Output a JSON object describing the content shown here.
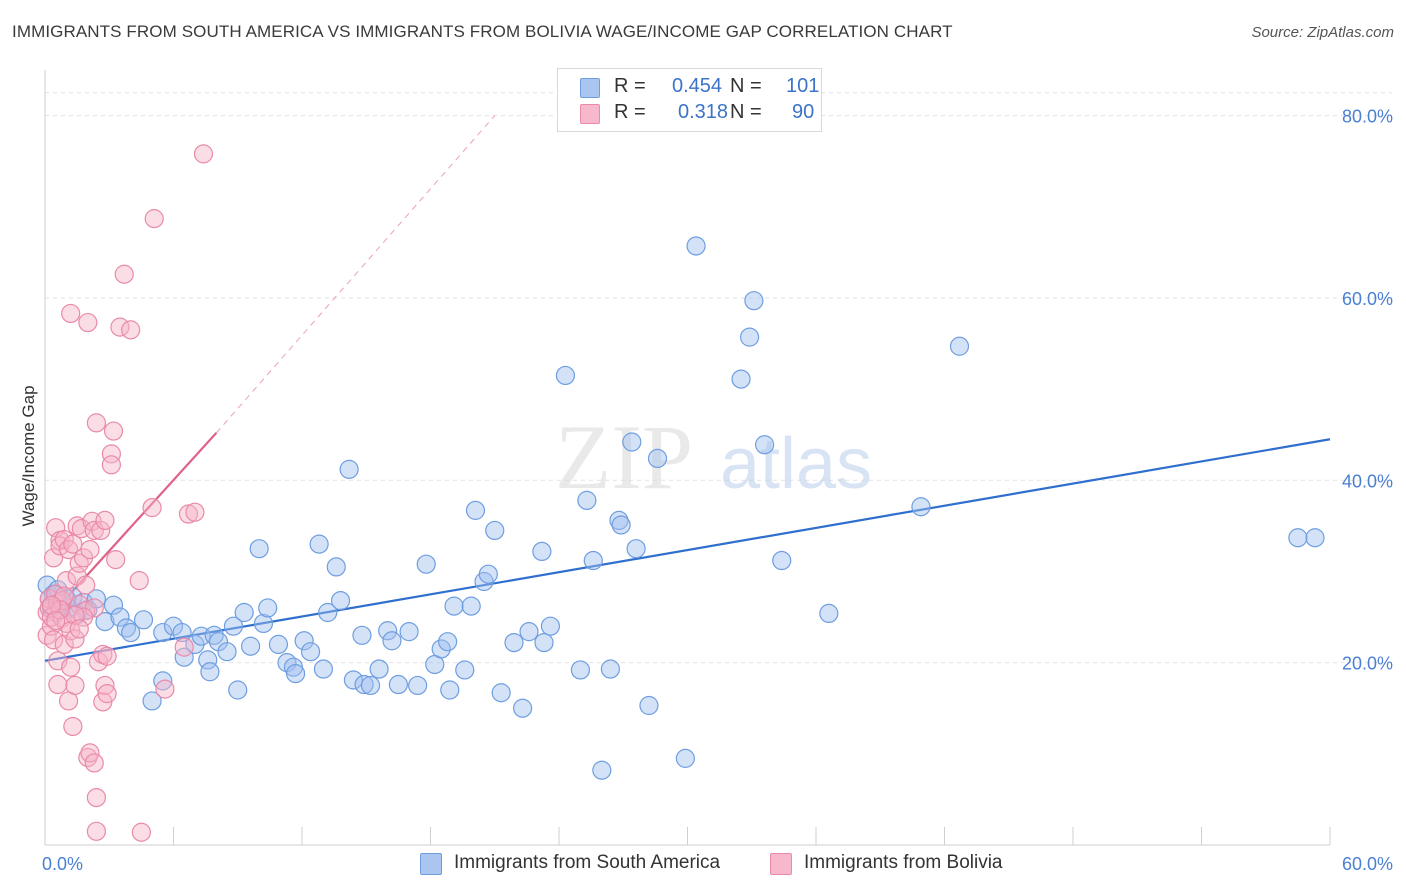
{
  "title": "IMMIGRANTS FROM SOUTH AMERICA VS IMMIGRANTS FROM BOLIVIA WAGE/INCOME GAP CORRELATION CHART",
  "source": "Source: ZipAtlas.com",
  "watermark": {
    "zip": "ZIP",
    "atlas": "atlas"
  },
  "legend_top": [
    {
      "r_label": "R =",
      "r_value": "0.454",
      "n_label": "N =",
      "n_value": "101",
      "color": "#aac6f0",
      "border": "#6e9ee0"
    },
    {
      "r_label": "R =",
      "r_value": "0.318",
      "n_label": "N =",
      "n_value": "90",
      "color": "#f7b8cb",
      "border": "#e98aa8"
    }
  ],
  "legend_bottom": [
    {
      "label": "Immigrants from South America",
      "color": "#aac6f0",
      "border": "#6e9ee0"
    },
    {
      "label": "Immigrants from Bolivia",
      "color": "#f7b8cb",
      "border": "#e98aa8"
    }
  ],
  "chart_data": {
    "type": "scatter",
    "xlabel": "",
    "ylabel": "Wage/Income Gap",
    "xlim": [
      0,
      60
    ],
    "ylim": [
      0,
      85
    ],
    "x_tick_labels": [
      "0.0%",
      "60.0%"
    ],
    "y_ticks": [
      20,
      40,
      60,
      80
    ],
    "y_tick_labels": [
      "20.0%",
      "40.0%",
      "60.0%",
      "80.0%"
    ],
    "grid": true,
    "series": [
      {
        "name": "Immigrants from South America",
        "color": "#6e9ee0",
        "fill": "rgba(160,190,240,0.45)",
        "trend": {
          "x": [
            0,
            60
          ],
          "y": [
            20.2,
            44.5
          ],
          "color": "#2f6fce",
          "dashed_extension": false
        },
        "points": [
          [
            0.1,
            28.5
          ],
          [
            0.2,
            27.0
          ],
          [
            0.3,
            26.0
          ],
          [
            0.4,
            27.5
          ],
          [
            0.5,
            25.5
          ],
          [
            0.6,
            28.0
          ],
          [
            0.8,
            26.5
          ],
          [
            1.0,
            27.0
          ],
          [
            1.1,
            26.0
          ],
          [
            1.3,
            27.2
          ],
          [
            1.5,
            25.3
          ],
          [
            1.8,
            26.6
          ],
          [
            2.0,
            25.8
          ],
          [
            2.4,
            27.0
          ],
          [
            2.8,
            24.5
          ],
          [
            3.2,
            26.3
          ],
          [
            3.5,
            25.0
          ],
          [
            3.8,
            23.8
          ],
          [
            4.0,
            23.3
          ],
          [
            4.6,
            24.7
          ],
          [
            5.0,
            15.8
          ],
          [
            5.5,
            23.3
          ],
          [
            5.5,
            18.0
          ],
          [
            6.0,
            24.0
          ],
          [
            6.4,
            23.3
          ],
          [
            6.5,
            20.6
          ],
          [
            7.0,
            22.0
          ],
          [
            7.3,
            22.9
          ],
          [
            7.6,
            20.3
          ],
          [
            7.7,
            19.0
          ],
          [
            7.9,
            23.0
          ],
          [
            8.1,
            22.3
          ],
          [
            8.5,
            21.2
          ],
          [
            8.8,
            24.0
          ],
          [
            9.0,
            17.0
          ],
          [
            9.3,
            25.5
          ],
          [
            9.6,
            21.8
          ],
          [
            10.0,
            32.5
          ],
          [
            10.2,
            24.3
          ],
          [
            10.4,
            26.0
          ],
          [
            10.9,
            22.0
          ],
          [
            11.3,
            20.0
          ],
          [
            11.6,
            19.5
          ],
          [
            11.7,
            18.8
          ],
          [
            12.1,
            22.4
          ],
          [
            12.4,
            21.2
          ],
          [
            12.8,
            33.0
          ],
          [
            13.0,
            19.3
          ],
          [
            13.2,
            25.5
          ],
          [
            13.6,
            30.5
          ],
          [
            13.8,
            26.8
          ],
          [
            14.2,
            41.2
          ],
          [
            14.4,
            18.1
          ],
          [
            14.8,
            23.0
          ],
          [
            14.9,
            17.6
          ],
          [
            15.2,
            17.5
          ],
          [
            15.6,
            19.3
          ],
          [
            16.0,
            23.5
          ],
          [
            16.2,
            22.4
          ],
          [
            16.5,
            17.6
          ],
          [
            17.0,
            23.4
          ],
          [
            17.4,
            17.5
          ],
          [
            17.8,
            30.8
          ],
          [
            18.2,
            19.8
          ],
          [
            18.5,
            21.5
          ],
          [
            18.8,
            22.3
          ],
          [
            18.9,
            17.0
          ],
          [
            19.1,
            26.2
          ],
          [
            19.6,
            19.2
          ],
          [
            19.9,
            26.2
          ],
          [
            20.1,
            36.7
          ],
          [
            20.5,
            28.9
          ],
          [
            20.7,
            29.7
          ],
          [
            21.0,
            34.5
          ],
          [
            21.3,
            16.7
          ],
          [
            21.9,
            22.2
          ],
          [
            22.3,
            15.0
          ],
          [
            22.6,
            23.4
          ],
          [
            23.3,
            22.2
          ],
          [
            23.2,
            32.2
          ],
          [
            23.6,
            24.0
          ],
          [
            24.3,
            51.5
          ],
          [
            25.0,
            19.2
          ],
          [
            25.3,
            37.8
          ],
          [
            25.6,
            31.2
          ],
          [
            26.0,
            8.2
          ],
          [
            26.4,
            19.3
          ],
          [
            26.8,
            35.6
          ],
          [
            26.9,
            35.1
          ],
          [
            27.4,
            44.2
          ],
          [
            27.6,
            32.5
          ],
          [
            28.2,
            15.3
          ],
          [
            28.6,
            42.4
          ],
          [
            29.9,
            9.5
          ],
          [
            30.4,
            65.7
          ],
          [
            32.5,
            51.1
          ],
          [
            32.9,
            55.7
          ],
          [
            33.1,
            59.7
          ],
          [
            33.6,
            43.9
          ],
          [
            34.4,
            31.2
          ],
          [
            36.6,
            25.4
          ],
          [
            40.9,
            37.1
          ],
          [
            42.7,
            54.7
          ],
          [
            59.3,
            33.7
          ],
          [
            58.5,
            33.7
          ]
        ]
      },
      {
        "name": "Immigrants from Bolivia",
        "color": "#e98aa8",
        "fill": "rgba(247,180,200,0.45)",
        "trend": {
          "x": [
            0,
            8.0
          ],
          "y": [
            24.5,
            45.2
          ],
          "color": "#e0628a",
          "dashed_extension_to": [
            21.0,
            80.0
          ]
        },
        "points": [
          [
            0.1,
            25.5
          ],
          [
            0.1,
            23.0
          ],
          [
            0.2,
            27.0
          ],
          [
            0.2,
            26.0
          ],
          [
            0.3,
            24.0
          ],
          [
            0.3,
            25.0
          ],
          [
            0.4,
            31.5
          ],
          [
            0.4,
            22.5
          ],
          [
            0.5,
            27.5
          ],
          [
            0.5,
            34.8
          ],
          [
            0.6,
            26.5
          ],
          [
            0.6,
            20.2
          ],
          [
            0.6,
            17.6
          ],
          [
            0.7,
            33.4
          ],
          [
            0.7,
            32.8
          ],
          [
            0.8,
            24.9
          ],
          [
            0.8,
            26.8
          ],
          [
            0.9,
            33.5
          ],
          [
            0.9,
            22.0
          ],
          [
            1.0,
            29.0
          ],
          [
            1.0,
            24.3
          ],
          [
            1.1,
            32.4
          ],
          [
            1.1,
            15.8
          ],
          [
            1.2,
            19.5
          ],
          [
            1.2,
            23.5
          ],
          [
            1.2,
            58.3
          ],
          [
            1.3,
            33.0
          ],
          [
            1.3,
            13.0
          ],
          [
            1.4,
            22.6
          ],
          [
            1.4,
            17.5
          ],
          [
            1.5,
            35.0
          ],
          [
            1.5,
            29.5
          ],
          [
            1.6,
            26.4
          ],
          [
            1.6,
            30.9
          ],
          [
            1.7,
            34.7
          ],
          [
            1.8,
            31.5
          ],
          [
            1.9,
            28.5
          ],
          [
            1.9,
            25.7
          ],
          [
            2.0,
            9.6
          ],
          [
            2.0,
            57.3
          ],
          [
            2.1,
            32.4
          ],
          [
            2.1,
            10.1
          ],
          [
            2.2,
            35.5
          ],
          [
            2.3,
            9.0
          ],
          [
            2.3,
            26.0
          ],
          [
            2.3,
            34.5
          ],
          [
            2.4,
            46.3
          ],
          [
            2.4,
            1.5
          ],
          [
            2.4,
            5.2
          ],
          [
            2.5,
            20.1
          ],
          [
            2.6,
            34.5
          ],
          [
            2.7,
            20.9
          ],
          [
            2.7,
            15.7
          ],
          [
            2.8,
            35.6
          ],
          [
            2.8,
            17.5
          ],
          [
            2.9,
            16.6
          ],
          [
            2.9,
            20.7
          ],
          [
            3.1,
            42.9
          ],
          [
            3.1,
            41.7
          ],
          [
            3.2,
            45.4
          ],
          [
            3.3,
            31.3
          ],
          [
            3.7,
            62.6
          ],
          [
            3.5,
            56.8
          ],
          [
            4.0,
            56.5
          ],
          [
            4.4,
            29.0
          ],
          [
            4.5,
            1.4
          ],
          [
            5.0,
            37.0
          ],
          [
            5.1,
            68.7
          ],
          [
            5.6,
            17.1
          ],
          [
            6.5,
            21.7
          ],
          [
            6.7,
            36.3
          ],
          [
            7.0,
            36.5
          ],
          [
            7.4,
            75.8
          ],
          [
            1.8,
            25.0
          ],
          [
            0.9,
            27.3
          ],
          [
            1.4,
            25.2
          ],
          [
            0.7,
            25.8
          ],
          [
            0.3,
            26.3
          ],
          [
            1.6,
            23.7
          ],
          [
            0.5,
            24.6
          ]
        ]
      }
    ]
  }
}
